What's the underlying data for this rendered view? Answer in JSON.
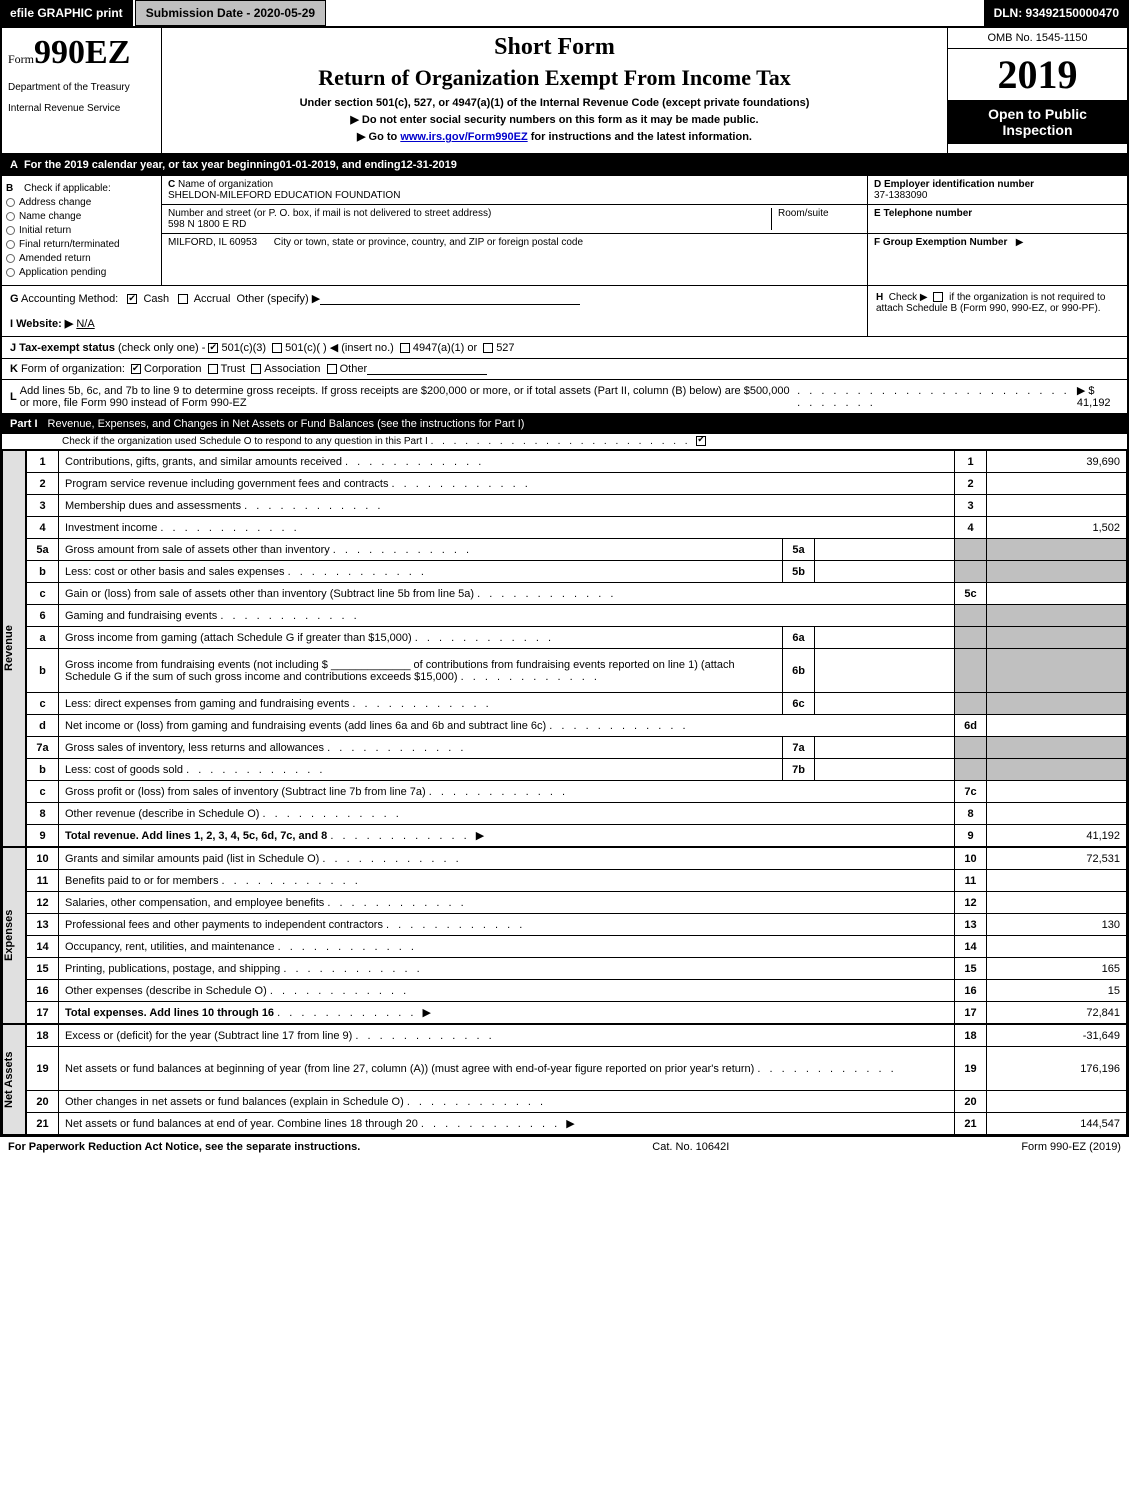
{
  "topbar": {
    "efile": "efile GRAPHIC print",
    "submission": "Submission Date - 2020-05-29",
    "dln": "DLN: 93492150000470"
  },
  "header": {
    "form_prefix": "Form",
    "form_number": "990EZ",
    "short_form": "Short Form",
    "return_of": "Return of Organization Exempt From Income Tax",
    "under_section": "Under section 501(c), 527, or 4947(a)(1) of the Internal Revenue Code (except private foundations)",
    "dept1": "Department of the Treasury",
    "dept2": "Internal Revenue Service",
    "do_not_enter": "Do not enter social security numbers on this form as it may be made public.",
    "go_to_prefix": "Go to ",
    "go_to_link": "www.irs.gov/Form990EZ",
    "go_to_suffix": " for instructions and the latest information.",
    "omb": "OMB No. 1545-1150",
    "year": "2019",
    "open_public": "Open to Public Inspection"
  },
  "section_a": {
    "a_label": "A",
    "a_text_prefix": "For the 2019 calendar year, or tax year beginning ",
    "a_begin": "01-01-2019",
    "a_mid": " , and ending ",
    "a_end": "12-31-2019",
    "b_label": "B",
    "b_text": "Check if applicable:",
    "b_items": [
      "Address change",
      "Name change",
      "Initial return",
      "Final return/terminated",
      "Amended return",
      "Application pending"
    ],
    "c_label": "C",
    "c_name_label": "Name of organization",
    "c_name": "SHELDON-MILEFORD EDUCATION FOUNDATION",
    "c_addr_label": "Number and street (or P. O. box, if mail is not delivered to street address)",
    "c_room_label": "Room/suite",
    "c_addr": "598 N 1800 E RD",
    "c_city_label": "City or town, state or province, country, and ZIP or foreign postal code",
    "c_city": "MILFORD, IL  60953",
    "d_label": "D Employer identification number",
    "d_value": "37-1383090",
    "e_label": "E Telephone number",
    "f_label": "F Group Exemption Number",
    "f_arrow": "▶"
  },
  "gh": {
    "g_label": "G",
    "g_text": "Accounting Method:",
    "g_cash": "Cash",
    "g_accrual": "Accrual",
    "g_other": "Other (specify) ▶",
    "h_label": "H",
    "h_text_prefix": "Check ▶ ",
    "h_text": " if the organization is not required to attach Schedule B (Form 990, 990-EZ, or 990-PF).",
    "i_label": "I Website: ▶",
    "i_value": "N/A",
    "j_label": "J Tax-exempt status",
    "j_text": "(check only one) - ",
    "j_501c3": "501(c)(3)",
    "j_501c": "501(c)(  ) ◀ (insert no.)",
    "j_4947": "4947(a)(1) or",
    "j_527": "527",
    "k_label": "K",
    "k_text": "Form of organization:",
    "k_corp": "Corporation",
    "k_trust": "Trust",
    "k_assoc": "Association",
    "k_other": "Other",
    "l_label": "L",
    "l_text": "Add lines 5b, 6c, and 7b to line 9 to determine gross receipts. If gross receipts are $200,000 or more, or if total assets (Part II, column (B) below) are $500,000 or more, file Form 990 instead of Form 990-EZ",
    "l_amount": "▶ $ 41,192"
  },
  "part1": {
    "label": "Part I",
    "title": "Revenue, Expenses, and Changes in Net Assets or Fund Balances (see the instructions for Part I)",
    "sub": "Check if the organization used Schedule O to respond to any question in this Part I"
  },
  "side_labels": {
    "revenue": "Revenue",
    "expenses": "Expenses",
    "netassets": "Net Assets"
  },
  "revenue_rows": [
    {
      "n": "1",
      "desc": "Contributions, gifts, grants, and similar amounts received",
      "rn": "1",
      "rv": "39,690"
    },
    {
      "n": "2",
      "desc": "Program service revenue including government fees and contracts",
      "rn": "2",
      "rv": ""
    },
    {
      "n": "3",
      "desc": "Membership dues and assessments",
      "rn": "3",
      "rv": ""
    },
    {
      "n": "4",
      "desc": "Investment income",
      "rn": "4",
      "rv": "1,502"
    },
    {
      "n": "5a",
      "desc": "Gross amount from sale of assets other than inventory",
      "mn": "5a",
      "mv": "",
      "grey": true
    },
    {
      "n": "b",
      "desc": "Less: cost or other basis and sales expenses",
      "mn": "5b",
      "mv": "",
      "grey": true
    },
    {
      "n": "c",
      "desc": "Gain or (loss) from sale of assets other than inventory (Subtract line 5b from line 5a)",
      "rn": "5c",
      "rv": ""
    },
    {
      "n": "6",
      "desc": "Gaming and fundraising events",
      "grey": true,
      "nomid": true
    },
    {
      "n": "a",
      "desc": "Gross income from gaming (attach Schedule G if greater than $15,000)",
      "mn": "6a",
      "mv": "",
      "grey": true
    },
    {
      "n": "b",
      "desc": "Gross income from fundraising events (not including $ _____________ of contributions from fundraising events reported on line 1) (attach Schedule G if the sum of such gross income and contributions exceeds $15,000)",
      "mn": "6b",
      "mv": "",
      "grey": true,
      "tall": true
    },
    {
      "n": "c",
      "desc": "Less: direct expenses from gaming and fundraising events",
      "mn": "6c",
      "mv": "",
      "grey": true
    },
    {
      "n": "d",
      "desc": "Net income or (loss) from gaming and fundraising events (add lines 6a and 6b and subtract line 6c)",
      "rn": "6d",
      "rv": ""
    },
    {
      "n": "7a",
      "desc": "Gross sales of inventory, less returns and allowances",
      "mn": "7a",
      "mv": "",
      "grey": true
    },
    {
      "n": "b",
      "desc": "Less: cost of goods sold",
      "mn": "7b",
      "mv": "",
      "grey": true
    },
    {
      "n": "c",
      "desc": "Gross profit or (loss) from sales of inventory (Subtract line 7b from line 7a)",
      "rn": "7c",
      "rv": ""
    },
    {
      "n": "8",
      "desc": "Other revenue (describe in Schedule O)",
      "rn": "8",
      "rv": ""
    },
    {
      "n": "9",
      "desc": "Total revenue. Add lines 1, 2, 3, 4, 5c, 6d, 7c, and 8",
      "rn": "9",
      "rv": "41,192",
      "bold": true,
      "arrow": true
    }
  ],
  "expense_rows": [
    {
      "n": "10",
      "desc": "Grants and similar amounts paid (list in Schedule O)",
      "rn": "10",
      "rv": "72,531"
    },
    {
      "n": "11",
      "desc": "Benefits paid to or for members",
      "rn": "11",
      "rv": ""
    },
    {
      "n": "12",
      "desc": "Salaries, other compensation, and employee benefits",
      "rn": "12",
      "rv": ""
    },
    {
      "n": "13",
      "desc": "Professional fees and other payments to independent contractors",
      "rn": "13",
      "rv": "130"
    },
    {
      "n": "14",
      "desc": "Occupancy, rent, utilities, and maintenance",
      "rn": "14",
      "rv": ""
    },
    {
      "n": "15",
      "desc": "Printing, publications, postage, and shipping",
      "rn": "15",
      "rv": "165"
    },
    {
      "n": "16",
      "desc": "Other expenses (describe in Schedule O)",
      "rn": "16",
      "rv": "15"
    },
    {
      "n": "17",
      "desc": "Total expenses. Add lines 10 through 16",
      "rn": "17",
      "rv": "72,841",
      "bold": true,
      "arrow": true
    }
  ],
  "netasset_rows": [
    {
      "n": "18",
      "desc": "Excess or (deficit) for the year (Subtract line 17 from line 9)",
      "rn": "18",
      "rv": "-31,649"
    },
    {
      "n": "19",
      "desc": "Net assets or fund balances at beginning of year (from line 27, column (A)) (must agree with end-of-year figure reported on prior year's return)",
      "rn": "19",
      "rv": "176,196",
      "tall": true
    },
    {
      "n": "20",
      "desc": "Other changes in net assets or fund balances (explain in Schedule O)",
      "rn": "20",
      "rv": ""
    },
    {
      "n": "21",
      "desc": "Net assets or fund balances at end of year. Combine lines 18 through 20",
      "rn": "21",
      "rv": "144,547",
      "arrow": true
    }
  ],
  "footer": {
    "left": "For Paperwork Reduction Act Notice, see the separate instructions.",
    "mid": "Cat. No. 10642I",
    "right": "Form 990-EZ (2019)"
  }
}
